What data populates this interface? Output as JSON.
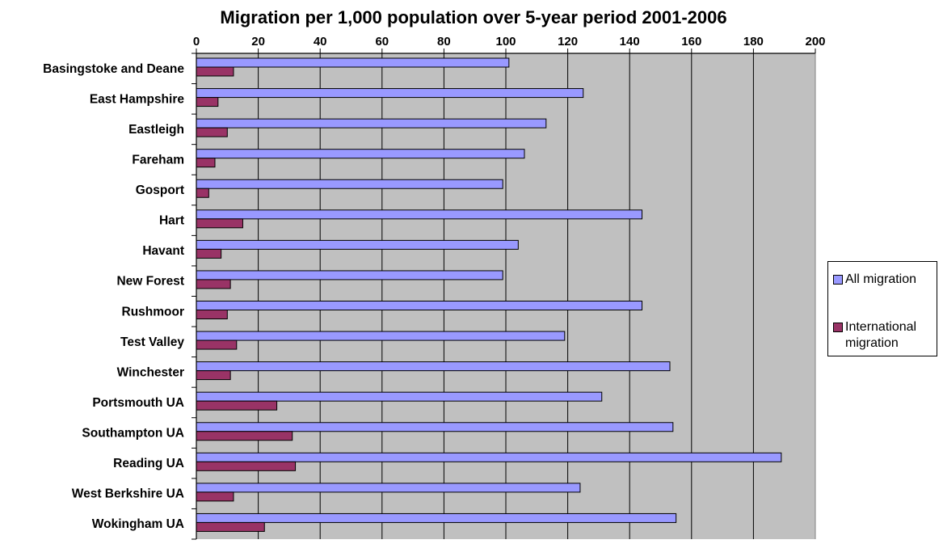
{
  "chart_data": {
    "type": "bar",
    "orientation": "horizontal",
    "title": "Migration per 1,000 population over 5-year period 2001-2006",
    "xlim": [
      0,
      200
    ],
    "x_ticks": [
      "0",
      "20",
      "40",
      "60",
      "80",
      "100",
      "120",
      "140",
      "160",
      "180",
      "200"
    ],
    "x_axis_position": "top",
    "grid": true,
    "plot_background": "#c0c0c0",
    "legend_position": "right",
    "categories": [
      "Basingstoke and Deane",
      "East Hampshire",
      "Eastleigh",
      "Fareham",
      "Gosport",
      "Hart",
      "Havant",
      "New Forest",
      "Rushmoor",
      "Test Valley",
      "Winchester",
      "Portsmouth UA",
      "Southampton UA",
      "Reading UA",
      "West Berkshire UA",
      "Wokingham UA"
    ],
    "series": [
      {
        "name": "All migration",
        "color": "#9999ff",
        "values": [
          101,
          125,
          113,
          106,
          99,
          144,
          104,
          99,
          144,
          119,
          153,
          131,
          154,
          189,
          124,
          155
        ]
      },
      {
        "name": "International migration",
        "color": "#993366",
        "values": [
          12,
          7,
          10,
          6,
          4,
          15,
          8,
          11,
          10,
          13,
          11,
          26,
          31,
          32,
          12,
          22
        ]
      }
    ]
  },
  "legend": {
    "items": [
      {
        "label_lines": [
          "All migration"
        ],
        "color": "#9999ff"
      },
      {
        "label_lines": [
          "International",
          "migration"
        ],
        "color": "#993366"
      }
    ]
  }
}
